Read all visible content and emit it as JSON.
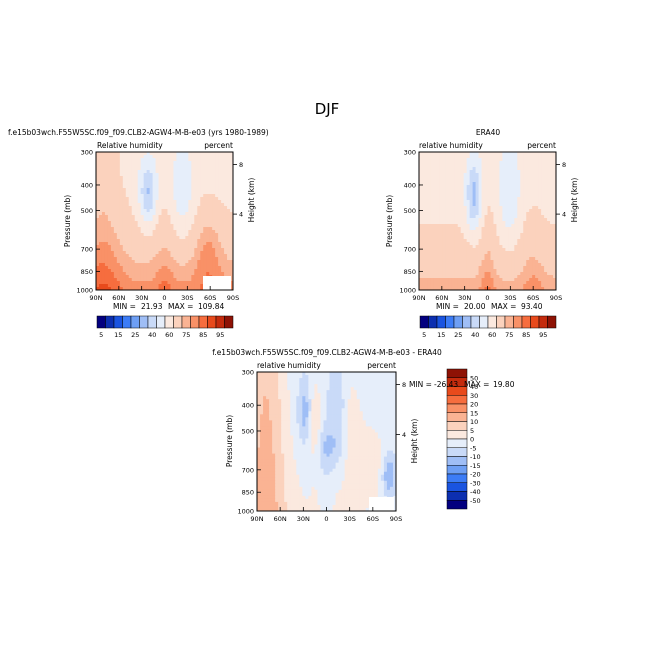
{
  "chart_data": [
    {
      "type": "heatmap",
      "figure_title": "DJF",
      "title": "f.e15b03wch.F55W5SC.f09_f09.CLB2-AGW4-M-B-e03 (yrs 1980-1989)",
      "variable": "Relative humidity",
      "units": "percent",
      "ylabel": "Pressure (mb)",
      "y2label": "Height (km)",
      "x_ticks": [
        "90N",
        "60N",
        "30N",
        "0",
        "30S",
        "60S",
        "90S"
      ],
      "y_ticks": [
        "300",
        "400",
        "500",
        "700",
        "850",
        "1000"
      ],
      "height_ticks": [
        "8",
        "4"
      ],
      "min_label": "MIN =",
      "min_value": "21.93",
      "max_label": "MAX =",
      "max_value": "109.84",
      "colorbar_labels": [
        "5",
        "15",
        "25",
        "40",
        "60",
        "75",
        "85",
        "95"
      ],
      "levels": [
        5,
        10,
        15,
        20,
        25,
        30,
        40,
        50,
        60,
        70,
        75,
        80,
        85,
        90,
        95,
        100
      ]
    },
    {
      "type": "heatmap",
      "title": "ERA40",
      "variable": "relative humidity",
      "units": "percent",
      "ylabel": "Pressure (mb)",
      "y2label": "Height (km)",
      "x_ticks": [
        "90N",
        "60N",
        "30N",
        "0",
        "30S",
        "60S",
        "90S"
      ],
      "y_ticks": [
        "300",
        "400",
        "500",
        "700",
        "850",
        "1000"
      ],
      "height_ticks": [
        "8",
        "4"
      ],
      "min_label": "MIN =",
      "min_value": "20.00",
      "max_label": "MAX =",
      "max_value": "93.40",
      "colorbar_labels": [
        "5",
        "15",
        "25",
        "40",
        "60",
        "75",
        "85",
        "95"
      ],
      "levels": [
        5,
        10,
        15,
        20,
        25,
        30,
        40,
        50,
        60,
        70,
        75,
        80,
        85,
        90,
        95,
        100
      ]
    },
    {
      "type": "heatmap",
      "title": "f.e15b03wch.F55W5SC.f09_f09.CLB2-AGW4-M-B-e03 - ERA40",
      "variable": "relative humidity",
      "units": "percent",
      "ylabel": "Pressure (mb)",
      "y2label": "Height (km)",
      "x_ticks": [
        "90N",
        "60N",
        "30N",
        "0",
        "30S",
        "60S",
        "90S"
      ],
      "y_ticks": [
        "300",
        "400",
        "500",
        "700",
        "850",
        "1000"
      ],
      "height_ticks": [
        "8",
        "4"
      ],
      "min_label": "MIN =",
      "min_value": "-26.43",
      "max_label": "MAX =",
      "max_value": "19.80",
      "colorbar_labels": [
        "50",
        "40",
        "30",
        "20",
        "15",
        "10",
        "5",
        "0",
        "-5",
        "-10",
        "-15",
        "-20",
        "-30",
        "-40",
        "-50"
      ],
      "levels": [
        -50,
        -40,
        -30,
        -20,
        -15,
        -10,
        -5,
        0,
        5,
        10,
        15,
        20,
        30,
        40,
        50
      ]
    }
  ],
  "colors": {
    "rh_scale": [
      "#03007f",
      "#0c2fb0",
      "#1a54e0",
      "#3c7cf6",
      "#6e9ff4",
      "#9fbef6",
      "#c9daf8",
      "#e6eefa",
      "#fbe9df",
      "#fbd2bd",
      "#fab393",
      "#f99167",
      "#f66d3e",
      "#e84a1c",
      "#c42b0d",
      "#8e1205"
    ],
    "diff_scale": [
      "#03007f",
      "#0c2fb0",
      "#1a54e0",
      "#3c7cf6",
      "#6e9ff4",
      "#9fbef6",
      "#c9daf8",
      "#e6eefa",
      "#fbe9df",
      "#fbd2bd",
      "#fab393",
      "#f99167",
      "#f66d3e",
      "#e84a1c",
      "#c42b0d",
      "#8e1205"
    ]
  }
}
